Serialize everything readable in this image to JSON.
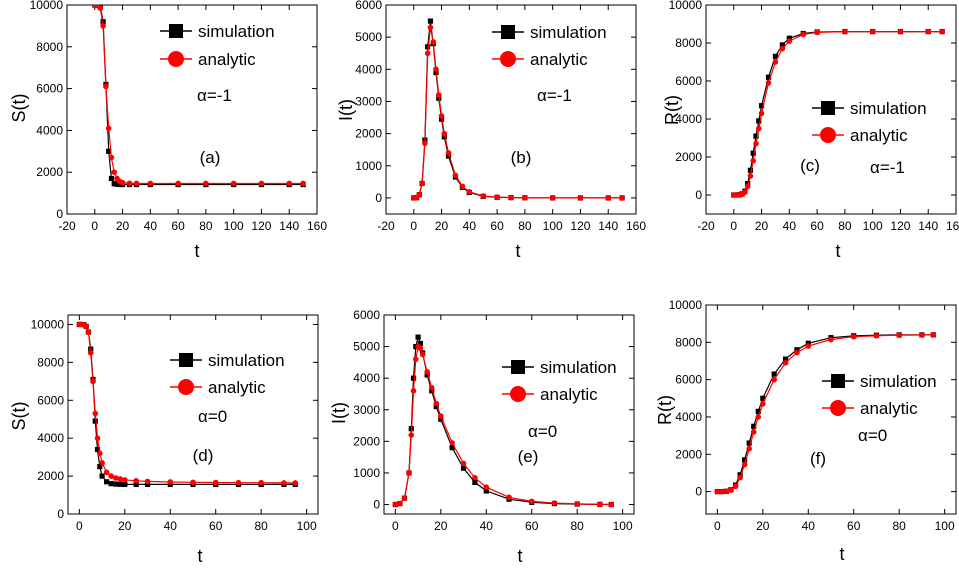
{
  "chart_data": [
    {
      "type": "scatter",
      "panel_label": "(a)",
      "annotation": "α=-1",
      "xlabel": "t",
      "ylabel": "S(t)",
      "xlim": [
        -20,
        160
      ],
      "ylim": [
        0,
        10000
      ],
      "xticks": [
        -20,
        0,
        20,
        40,
        60,
        80,
        100,
        120,
        140,
        160
      ],
      "yticks": [
        0,
        2000,
        4000,
        6000,
        8000,
        10000
      ],
      "legend": "top-right",
      "series": [
        {
          "name": "simulation",
          "color": "#000000",
          "marker": "square",
          "x": [
            0,
            2,
            4,
            6,
            8,
            10,
            12,
            14,
            16,
            18,
            20,
            25,
            30,
            40,
            60,
            80,
            100,
            120,
            140,
            150
          ],
          "y": [
            10000,
            9990,
            9900,
            9200,
            6200,
            3000,
            1700,
            1450,
            1420,
            1410,
            1410,
            1410,
            1410,
            1410,
            1410,
            1410,
            1410,
            1410,
            1410,
            1410
          ]
        },
        {
          "name": "analytic",
          "color": "#ff0000",
          "marker": "circle",
          "x": [
            0,
            2,
            4,
            6,
            8,
            10,
            12,
            14,
            16,
            18,
            20,
            25,
            30,
            40,
            60,
            80,
            100,
            120,
            140,
            150
          ],
          "y": [
            10000,
            9990,
            9850,
            9000,
            6100,
            4100,
            2700,
            2000,
            1700,
            1550,
            1500,
            1470,
            1460,
            1460,
            1460,
            1460,
            1460,
            1460,
            1460,
            1460
          ]
        }
      ]
    },
    {
      "type": "scatter",
      "panel_label": "(b)",
      "annotation": "α=-1",
      "xlabel": "t",
      "ylabel": "I(t)",
      "xlim": [
        -20,
        160
      ],
      "ylim": [
        -500,
        6000
      ],
      "xticks": [
        -20,
        0,
        20,
        40,
        60,
        80,
        100,
        120,
        140,
        160
      ],
      "yticks": [
        0,
        1000,
        2000,
        3000,
        4000,
        5000,
        6000
      ],
      "legend": "top-right",
      "series": [
        {
          "name": "simulation",
          "color": "#000000",
          "marker": "square",
          "x": [
            0,
            2,
            4,
            6,
            8,
            10,
            12,
            14,
            16,
            18,
            20,
            22,
            25,
            30,
            35,
            40,
            50,
            60,
            70,
            80,
            100,
            120,
            140,
            150
          ],
          "y": [
            0,
            10,
            100,
            450,
            1800,
            4700,
            5500,
            4800,
            3900,
            3100,
            2450,
            1900,
            1300,
            650,
            330,
            170,
            50,
            20,
            10,
            5,
            0,
            0,
            0,
            0
          ]
        },
        {
          "name": "analytic",
          "color": "#ff0000",
          "marker": "circle",
          "x": [
            0,
            2,
            4,
            6,
            8,
            10,
            12,
            14,
            16,
            18,
            20,
            22,
            25,
            30,
            35,
            40,
            50,
            60,
            70,
            80,
            100,
            120,
            140,
            150
          ],
          "y": [
            0,
            10,
            100,
            450,
            1700,
            4500,
            5300,
            4850,
            4000,
            3200,
            2550,
            2000,
            1400,
            700,
            360,
            190,
            60,
            25,
            12,
            5,
            0,
            0,
            0,
            0
          ]
        }
      ]
    },
    {
      "type": "scatter",
      "panel_label": "(c)",
      "annotation": "α=-1",
      "xlabel": "t",
      "ylabel": "R(t)",
      "xlim": [
        -20,
        160
      ],
      "ylim": [
        -1000,
        10000
      ],
      "xticks": [
        -20,
        0,
        20,
        40,
        60,
        80,
        100,
        120,
        140,
        160
      ],
      "yticks": [
        0,
        2000,
        4000,
        6000,
        8000,
        10000
      ],
      "legend": "right",
      "series": [
        {
          "name": "simulation",
          "color": "#000000",
          "marker": "square",
          "x": [
            0,
            2,
            4,
            6,
            8,
            10,
            12,
            14,
            16,
            18,
            20,
            25,
            30,
            35,
            40,
            50,
            60,
            80,
            100,
            120,
            140,
            150
          ],
          "y": [
            0,
            0,
            10,
            60,
            200,
            600,
            1300,
            2200,
            3100,
            3900,
            4700,
            6200,
            7300,
            7900,
            8250,
            8500,
            8580,
            8600,
            8600,
            8600,
            8600,
            8600
          ]
        },
        {
          "name": "analytic",
          "color": "#ff0000",
          "marker": "circle",
          "x": [
            0,
            2,
            4,
            6,
            8,
            10,
            12,
            14,
            16,
            18,
            20,
            25,
            30,
            35,
            40,
            50,
            60,
            80,
            100,
            120,
            140,
            150
          ],
          "y": [
            0,
            0,
            5,
            40,
            150,
            450,
            1000,
            1800,
            2700,
            3500,
            4300,
            5900,
            7000,
            7700,
            8100,
            8450,
            8560,
            8600,
            8600,
            8600,
            8600,
            8600
          ]
        }
      ]
    },
    {
      "type": "scatter",
      "panel_label": "(d)",
      "annotation": "α=0",
      "xlabel": "t",
      "ylabel": "S(t)",
      "xlim": [
        -5,
        105
      ],
      "ylim": [
        0,
        10500
      ],
      "xticks": [
        0,
        20,
        40,
        60,
        80,
        100
      ],
      "yticks": [
        0,
        2000,
        4000,
        6000,
        8000,
        10000
      ],
      "legend": "right",
      "series": [
        {
          "name": "simulation",
          "color": "#000000",
          "marker": "square",
          "x": [
            0,
            1,
            2,
            3,
            4,
            5,
            6,
            7,
            8,
            9,
            10,
            12,
            14,
            16,
            18,
            20,
            25,
            30,
            40,
            50,
            60,
            70,
            80,
            90,
            95
          ],
          "y": [
            10000,
            10000,
            9990,
            9900,
            9600,
            8700,
            7100,
            4900,
            3400,
            2500,
            2000,
            1700,
            1600,
            1580,
            1570,
            1560,
            1560,
            1560,
            1560,
            1560,
            1560,
            1560,
            1560,
            1560,
            1560
          ]
        },
        {
          "name": "analytic",
          "color": "#ff0000",
          "marker": "circle",
          "x": [
            0,
            1,
            2,
            3,
            4,
            5,
            6,
            7,
            8,
            9,
            10,
            12,
            14,
            16,
            18,
            20,
            25,
            30,
            40,
            50,
            60,
            70,
            80,
            90,
            95
          ],
          "y": [
            10000,
            10000,
            9990,
            9900,
            9600,
            8500,
            7000,
            5300,
            4000,
            3200,
            2700,
            2200,
            2000,
            1900,
            1850,
            1800,
            1750,
            1720,
            1690,
            1670,
            1660,
            1650,
            1650,
            1640,
            1640
          ]
        }
      ]
    },
    {
      "type": "scatter",
      "panel_label": "(e)",
      "annotation": "α=0",
      "xlabel": "t",
      "ylabel": "I(t)",
      "xlim": [
        -5,
        105
      ],
      "ylim": [
        -300,
        6000
      ],
      "xticks": [
        0,
        20,
        40,
        60,
        80,
        100
      ],
      "yticks": [
        0,
        1000,
        2000,
        3000,
        4000,
        5000,
        6000
      ],
      "legend": "right",
      "series": [
        {
          "name": "simulation",
          "color": "#000000",
          "marker": "square",
          "x": [
            0,
            2,
            4,
            6,
            7,
            8,
            9,
            10,
            11,
            12,
            14,
            16,
            18,
            20,
            25,
            30,
            35,
            40,
            50,
            60,
            70,
            80,
            90,
            95
          ],
          "y": [
            0,
            30,
            200,
            1000,
            2400,
            4000,
            5000,
            5300,
            5100,
            4800,
            4100,
            3600,
            3100,
            2700,
            1800,
            1150,
            700,
            430,
            170,
            70,
            30,
            15,
            5,
            0
          ]
        },
        {
          "name": "analytic",
          "color": "#ff0000",
          "marker": "circle",
          "x": [
            0,
            2,
            4,
            6,
            7,
            8,
            9,
            10,
            11,
            12,
            14,
            16,
            18,
            20,
            25,
            30,
            35,
            40,
            50,
            60,
            70,
            80,
            90,
            95
          ],
          "y": [
            0,
            30,
            200,
            1000,
            2200,
            3600,
            4600,
            5000,
            4950,
            4750,
            4200,
            3700,
            3200,
            2800,
            1950,
            1300,
            850,
            550,
            230,
            100,
            45,
            20,
            8,
            0
          ]
        }
      ]
    },
    {
      "type": "scatter",
      "panel_label": "(f)",
      "annotation": "α=0",
      "xlabel": "t",
      "ylabel": "R(t)",
      "xlim": [
        -5,
        105
      ],
      "ylim": [
        -1200,
        10000
      ],
      "xticks": [
        0,
        20,
        40,
        60,
        80,
        100
      ],
      "yticks": [
        0,
        2000,
        4000,
        6000,
        8000,
        10000
      ],
      "legend": "right",
      "series": [
        {
          "name": "simulation",
          "color": "#000000",
          "marker": "square",
          "x": [
            0,
            2,
            4,
            6,
            8,
            10,
            12,
            14,
            16,
            18,
            20,
            25,
            30,
            35,
            40,
            50,
            60,
            70,
            80,
            90,
            95
          ],
          "y": [
            0,
            0,
            20,
            100,
            350,
            900,
            1700,
            2600,
            3500,
            4300,
            5000,
            6300,
            7100,
            7600,
            7950,
            8250,
            8350,
            8380,
            8400,
            8400,
            8400
          ]
        },
        {
          "name": "analytic",
          "color": "#ff0000",
          "marker": "circle",
          "x": [
            0,
            2,
            4,
            6,
            8,
            10,
            12,
            14,
            16,
            18,
            20,
            25,
            30,
            35,
            40,
            50,
            60,
            70,
            80,
            90,
            95
          ],
          "y": [
            0,
            0,
            15,
            80,
            280,
            750,
            1450,
            2300,
            3200,
            4000,
            4700,
            6000,
            6900,
            7450,
            7800,
            8150,
            8300,
            8350,
            8380,
            8390,
            8400
          ]
        }
      ]
    }
  ]
}
